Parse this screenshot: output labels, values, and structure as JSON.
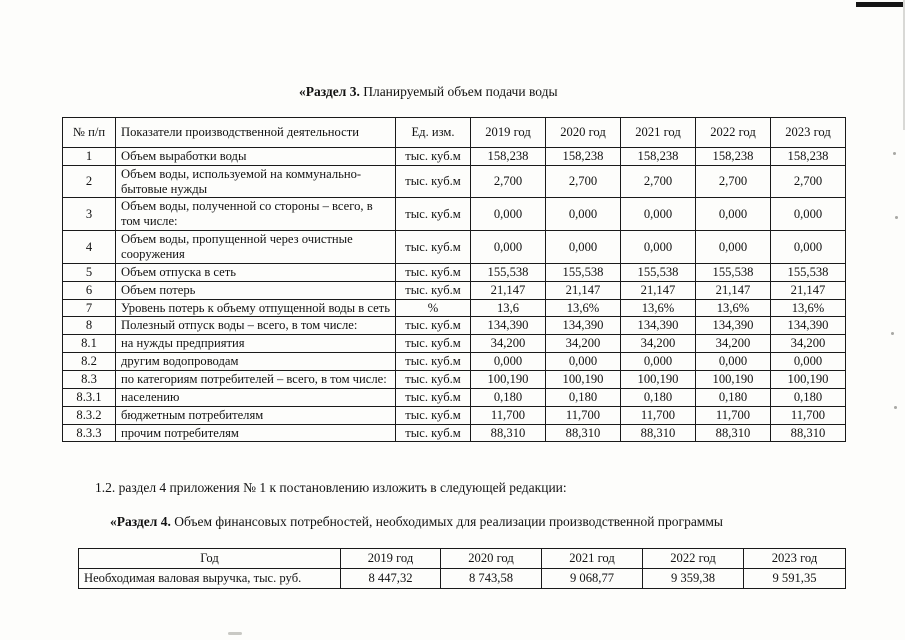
{
  "section3": {
    "title_bold": "«Раздел 3.",
    "title_rest": " Планируемый объем подачи воды"
  },
  "table1": {
    "headers": [
      "№ п/п",
      "Показатели производственной деятельности",
      "Ед. изм.",
      "2019 год",
      "2020 год",
      "2021 год",
      "2022 год",
      "2023 год"
    ],
    "rows": [
      [
        "1",
        "Объем выработки воды",
        "тыс. куб.м",
        "158,238",
        "158,238",
        "158,238",
        "158,238",
        "158,238"
      ],
      [
        "2",
        "Объем воды, используемой на коммунально-бытовые нужды",
        "тыс. куб.м",
        "2,700",
        "2,700",
        "2,700",
        "2,700",
        "2,700"
      ],
      [
        "3",
        "Объем воды, полученной со стороны – всего, в том числе:",
        "тыс. куб.м",
        "0,000",
        "0,000",
        "0,000",
        "0,000",
        "0,000"
      ],
      [
        "4",
        "Объем воды, пропущенной через очистные сооружения",
        "тыс. куб.м",
        "0,000",
        "0,000",
        "0,000",
        "0,000",
        "0,000"
      ],
      [
        "5",
        "Объем отпуска в сеть",
        "тыс. куб.м",
        "155,538",
        "155,538",
        "155,538",
        "155,538",
        "155,538"
      ],
      [
        "6",
        "Объем потерь",
        "тыс. куб.м",
        "21,147",
        "21,147",
        "21,147",
        "21,147",
        "21,147"
      ],
      [
        "7",
        "Уровень потерь к объему отпущенной воды в сеть",
        "%",
        "13,6",
        "13,6%",
        "13,6%",
        "13,6%",
        "13,6%"
      ],
      [
        "8",
        "Полезный отпуск воды – всего, в том числе:",
        "тыс. куб.м",
        "134,390",
        "134,390",
        "134,390",
        "134,390",
        "134,390"
      ],
      [
        "8.1",
        "на нужды предприятия",
        "тыс. куб.м",
        "34,200",
        "34,200",
        "34,200",
        "34,200",
        "34,200"
      ],
      [
        "8.2",
        "другим водопроводам",
        "тыс. куб.м",
        "0,000",
        "0,000",
        "0,000",
        "0,000",
        "0,000"
      ],
      [
        "8.3",
        "по категориям потребителей – всего, в том числе:",
        "тыс. куб.м",
        "100,190",
        "100,190",
        "100,190",
        "100,190",
        "100,190"
      ],
      [
        "8.3.1",
        "населению",
        "тыс. куб.м",
        "0,180",
        "0,180",
        "0,180",
        "0,180",
        "0,180"
      ],
      [
        "8.3.2",
        "бюджетным потребителям",
        "тыс. куб.м",
        "11,700",
        "11,700",
        "11,700",
        "11,700",
        "11,700"
      ],
      [
        "8.3.3",
        "прочим потребителям",
        "тыс. куб.м",
        "88,310",
        "88,310",
        "88,310",
        "88,310",
        "88,310"
      ]
    ]
  },
  "paragraph_1_2": "1.2. раздел 4 приложения № 1 к постановлению изложить в следующей редакции:",
  "section4": {
    "title_bold": "«Раздел 4.",
    "title_rest": " Объем финансовых потребностей, необходимых для реализации производственной программы"
  },
  "table2": {
    "headers": [
      "Год",
      "2019 год",
      "2020 год",
      "2021 год",
      "2022 год",
      "2023 год"
    ],
    "rows": [
      [
        "Необходимая валовая выручка, тыс. руб.",
        "8 447,32",
        "8 743,58",
        "9 068,77",
        "9 359,38",
        "9 591,35"
      ]
    ]
  }
}
